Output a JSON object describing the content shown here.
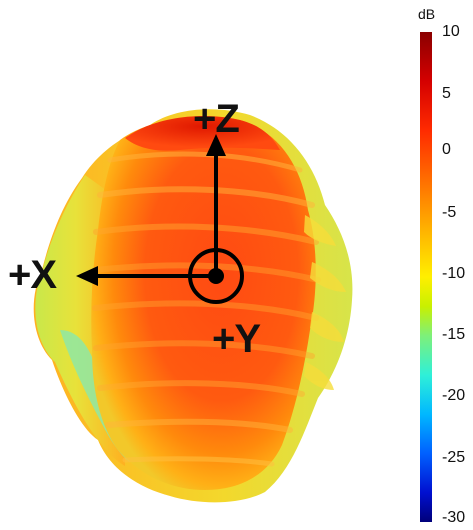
{
  "axes": {
    "z_label": "+Z",
    "x_label": "+X",
    "y_label": "+Y"
  },
  "colorbar": {
    "unit": "dB",
    "ticks": [
      "10",
      "5",
      "0",
      "-5",
      "-10",
      "-15",
      "-20",
      "-25",
      "-30"
    ],
    "range": [
      -30,
      10
    ],
    "colors": {
      "max": "#8a0000",
      "high": "#ff2a00",
      "mid_high": "#ff9a00",
      "mid": "#ffef00",
      "mid_low": "#2ff0d8",
      "low": "#0060ff",
      "min": "#00007a"
    }
  }
}
